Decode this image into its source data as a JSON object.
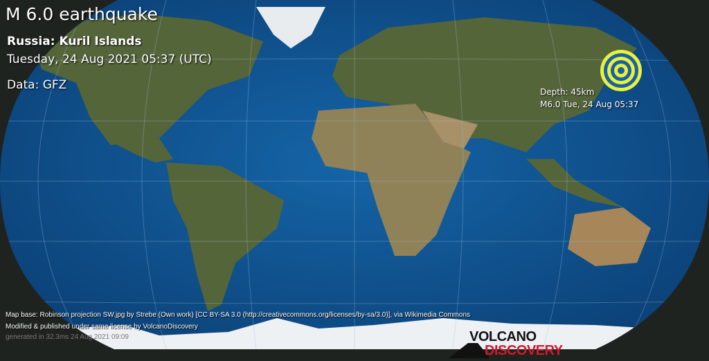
{
  "header": {
    "title": "M 6.0 earthquake",
    "region": "Russia: Kuril Islands",
    "datetime": "Tuesday, 24 Aug 2021 05:37 (UTC)",
    "data_source": "Data: GFZ"
  },
  "marker": {
    "depth": "Depth: 45km",
    "label": "M6.0 Tue, 24 Aug 05:37",
    "colors": {
      "ring_light": "#e8f23a",
      "ring_dark": "#1b5fa8"
    }
  },
  "credits": {
    "line1": "Map base: Robinson projection SW.jpg by Strebe (Own work) [CC BY-SA 3.0 (http://creativecommons.org/licenses/by-sa/3.0)], via Wikimedia Commons",
    "line2": "Modified & published under same license by VolcanoDiscovery",
    "line3": "generated in 32.3ms 24 Aug 2021 09:09"
  },
  "logo": {
    "line1": "VOLCANO",
    "line2": "DISCOVERY",
    "accent": "#d2192c"
  },
  "colors": {
    "ocean": "#0f4f8c",
    "land": "#5b6a3a",
    "desert": "#b39a6e",
    "ice": "#f2f4f6",
    "background": "#1e2320"
  }
}
